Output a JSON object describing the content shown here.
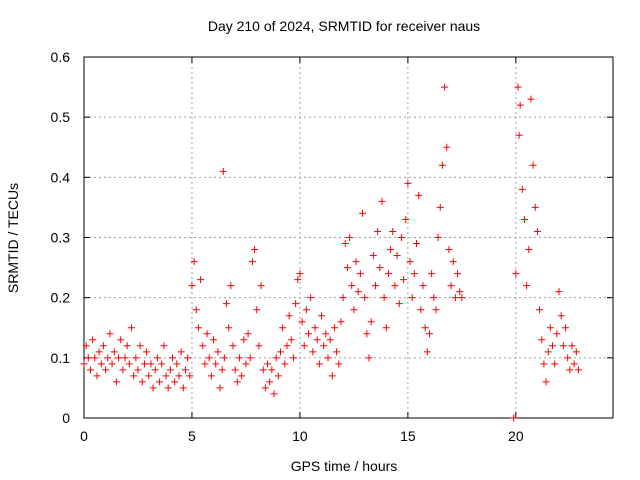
{
  "chart_data": {
    "type": "scatter",
    "title": "Day 210 of 2024, SRMTID for receiver naus",
    "xlabel": "GPS time / hours",
    "ylabel": "SRMTID / TECUs",
    "xlim": [
      0,
      24.5
    ],
    "ylim": [
      0,
      0.6
    ],
    "x_ticks": [
      0,
      5,
      10,
      15,
      20
    ],
    "x_tick_labels": [
      "0",
      "5",
      "10",
      "15",
      "20"
    ],
    "y_ticks": [
      0,
      0.1,
      0.2,
      0.3,
      0.4,
      0.5,
      0.6
    ],
    "y_tick_labels": [
      "0",
      "0.1",
      "0.2",
      "0.3",
      "0.4",
      "0.5",
      "0.6"
    ],
    "grid": true,
    "marker": "+",
    "color": "#ff0000",
    "series": [
      {
        "name": "SRMTID",
        "points": [
          [
            0.0,
            0.09
          ],
          [
            0.1,
            0.12
          ],
          [
            0.2,
            0.1
          ],
          [
            0.3,
            0.08
          ],
          [
            0.4,
            0.13
          ],
          [
            0.5,
            0.1
          ],
          [
            0.6,
            0.07
          ],
          [
            0.7,
            0.11
          ],
          [
            0.8,
            0.09
          ],
          [
            0.9,
            0.12
          ],
          [
            1.0,
            0.08
          ],
          [
            1.1,
            0.1
          ],
          [
            1.2,
            0.14
          ],
          [
            1.3,
            0.09
          ],
          [
            1.4,
            0.11
          ],
          [
            1.5,
            0.06
          ],
          [
            1.6,
            0.1
          ],
          [
            1.7,
            0.13
          ],
          [
            1.8,
            0.08
          ],
          [
            1.9,
            0.1
          ],
          [
            2.0,
            0.12
          ],
          [
            2.1,
            0.09
          ],
          [
            2.2,
            0.15
          ],
          [
            2.3,
            0.07
          ],
          [
            2.4,
            0.1
          ],
          [
            2.5,
            0.08
          ],
          [
            2.6,
            0.12
          ],
          [
            2.7,
            0.06
          ],
          [
            2.8,
            0.09
          ],
          [
            2.9,
            0.11
          ],
          [
            3.0,
            0.07
          ],
          [
            3.1,
            0.09
          ],
          [
            3.2,
            0.05
          ],
          [
            3.3,
            0.08
          ],
          [
            3.4,
            0.1
          ],
          [
            3.5,
            0.06
          ],
          [
            3.6,
            0.09
          ],
          [
            3.7,
            0.12
          ],
          [
            3.8,
            0.07
          ],
          [
            3.9,
            0.05
          ],
          [
            4.0,
            0.08
          ],
          [
            4.1,
            0.1
          ],
          [
            4.2,
            0.06
          ],
          [
            4.3,
            0.09
          ],
          [
            4.4,
            0.07
          ],
          [
            4.5,
            0.11
          ],
          [
            4.6,
            0.05
          ],
          [
            4.7,
            0.08
          ],
          [
            4.8,
            0.1
          ],
          [
            4.9,
            0.07
          ],
          [
            5.0,
            0.22
          ],
          [
            5.1,
            0.26
          ],
          [
            5.2,
            0.18
          ],
          [
            5.3,
            0.15
          ],
          [
            5.4,
            0.23
          ],
          [
            5.5,
            0.12
          ],
          [
            5.6,
            0.09
          ],
          [
            5.7,
            0.14
          ],
          [
            5.8,
            0.1
          ],
          [
            5.9,
            0.07
          ],
          [
            6.0,
            0.13
          ],
          [
            6.1,
            0.09
          ],
          [
            6.2,
            0.11
          ],
          [
            6.3,
            0.05
          ],
          [
            6.4,
            0.08
          ],
          [
            6.45,
            0.41
          ],
          [
            6.5,
            0.1
          ],
          [
            6.6,
            0.19
          ],
          [
            6.7,
            0.15
          ],
          [
            6.8,
            0.22
          ],
          [
            6.9,
            0.12
          ],
          [
            7.0,
            0.08
          ],
          [
            7.1,
            0.06
          ],
          [
            7.2,
            0.1
          ],
          [
            7.3,
            0.07
          ],
          [
            7.4,
            0.13
          ],
          [
            7.5,
            0.09
          ],
          [
            7.6,
            0.14
          ],
          [
            7.7,
            0.1
          ],
          [
            7.8,
            0.26
          ],
          [
            7.9,
            0.28
          ],
          [
            8.0,
            0.18
          ],
          [
            8.1,
            0.12
          ],
          [
            8.2,
            0.22
          ],
          [
            8.3,
            0.08
          ],
          [
            8.4,
            0.05
          ],
          [
            8.5,
            0.09
          ],
          [
            8.6,
            0.06
          ],
          [
            8.7,
            0.08
          ],
          [
            8.8,
            0.04
          ],
          [
            8.9,
            0.1
          ],
          [
            9.0,
            0.07
          ],
          [
            9.1,
            0.11
          ],
          [
            9.2,
            0.15
          ],
          [
            9.3,
            0.09
          ],
          [
            9.4,
            0.12
          ],
          [
            9.5,
            0.17
          ],
          [
            9.6,
            0.13
          ],
          [
            9.7,
            0.1
          ],
          [
            9.8,
            0.19
          ],
          [
            9.9,
            0.23
          ],
          [
            10.0,
            0.24
          ],
          [
            10.1,
            0.16
          ],
          [
            10.2,
            0.12
          ],
          [
            10.3,
            0.18
          ],
          [
            10.4,
            0.14
          ],
          [
            10.5,
            0.2
          ],
          [
            10.6,
            0.11
          ],
          [
            10.7,
            0.15
          ],
          [
            10.8,
            0.13
          ],
          [
            10.9,
            0.09
          ],
          [
            11.0,
            0.17
          ],
          [
            11.1,
            0.12
          ],
          [
            11.2,
            0.14
          ],
          [
            11.3,
            0.1
          ],
          [
            11.4,
            0.13
          ],
          [
            11.5,
            0.07
          ],
          [
            11.6,
            0.15
          ],
          [
            11.7,
            0.11
          ],
          [
            11.8,
            0.09
          ],
          [
            11.9,
            0.16
          ],
          [
            12.0,
            0.2
          ],
          [
            12.1,
            0.29
          ],
          [
            12.2,
            0.25
          ],
          [
            12.3,
            0.3
          ],
          [
            12.4,
            0.22
          ],
          [
            12.5,
            0.18
          ],
          [
            12.6,
            0.26
          ],
          [
            12.7,
            0.21
          ],
          [
            12.8,
            0.24
          ],
          [
            12.9,
            0.34
          ],
          [
            13.0,
            0.2
          ],
          [
            13.1,
            0.14
          ],
          [
            13.2,
            0.1
          ],
          [
            13.3,
            0.16
          ],
          [
            13.4,
            0.27
          ],
          [
            13.5,
            0.22
          ],
          [
            13.6,
            0.31
          ],
          [
            13.7,
            0.25
          ],
          [
            13.8,
            0.36
          ],
          [
            13.9,
            0.2
          ],
          [
            14.0,
            0.15
          ],
          [
            14.1,
            0.24
          ],
          [
            14.2,
            0.28
          ],
          [
            14.3,
            0.31
          ],
          [
            14.4,
            0.22
          ],
          [
            14.5,
            0.27
          ],
          [
            14.6,
            0.19
          ],
          [
            14.7,
            0.3
          ],
          [
            14.8,
            0.23
          ],
          [
            14.9,
            0.33
          ],
          [
            15.0,
            0.39
          ],
          [
            15.1,
            0.26
          ],
          [
            15.2,
            0.2
          ],
          [
            15.3,
            0.24
          ],
          [
            15.4,
            0.29
          ],
          [
            15.5,
            0.37
          ],
          [
            15.6,
            0.18
          ],
          [
            15.7,
            0.22
          ],
          [
            15.8,
            0.15
          ],
          [
            15.9,
            0.11
          ],
          [
            16.0,
            0.14
          ],
          [
            16.1,
            0.24
          ],
          [
            16.2,
            0.2
          ],
          [
            16.3,
            0.18
          ],
          [
            16.4,
            0.3
          ],
          [
            16.5,
            0.35
          ],
          [
            16.6,
            0.42
          ],
          [
            16.7,
            0.55
          ],
          [
            16.8,
            0.45
          ],
          [
            16.9,
            0.28
          ],
          [
            17.0,
            0.22
          ],
          [
            17.1,
            0.26
          ],
          [
            17.2,
            0.2
          ],
          [
            17.3,
            0.24
          ],
          [
            17.4,
            0.21
          ],
          [
            17.5,
            0.2
          ],
          [
            19.9,
            0.0
          ],
          [
            20.0,
            0.24
          ],
          [
            20.1,
            0.55
          ],
          [
            20.15,
            0.47
          ],
          [
            20.2,
            0.52
          ],
          [
            20.3,
            0.38
          ],
          [
            20.4,
            0.33
          ],
          [
            20.5,
            0.22
          ],
          [
            20.6,
            0.28
          ],
          [
            20.7,
            0.53
          ],
          [
            20.8,
            0.42
          ],
          [
            20.9,
            0.35
          ],
          [
            21.0,
            0.31
          ],
          [
            21.1,
            0.18
          ],
          [
            21.2,
            0.13
          ],
          [
            21.3,
            0.09
          ],
          [
            21.4,
            0.06
          ],
          [
            21.5,
            0.11
          ],
          [
            21.6,
            0.15
          ],
          [
            21.7,
            0.12
          ],
          [
            21.8,
            0.09
          ],
          [
            21.9,
            0.14
          ],
          [
            22.0,
            0.21
          ],
          [
            22.1,
            0.17
          ],
          [
            22.2,
            0.12
          ],
          [
            22.3,
            0.15
          ],
          [
            22.4,
            0.1
          ],
          [
            22.5,
            0.08
          ],
          [
            22.6,
            0.12
          ],
          [
            22.7,
            0.09
          ],
          [
            22.8,
            0.11
          ],
          [
            22.9,
            0.08
          ]
        ]
      }
    ]
  }
}
